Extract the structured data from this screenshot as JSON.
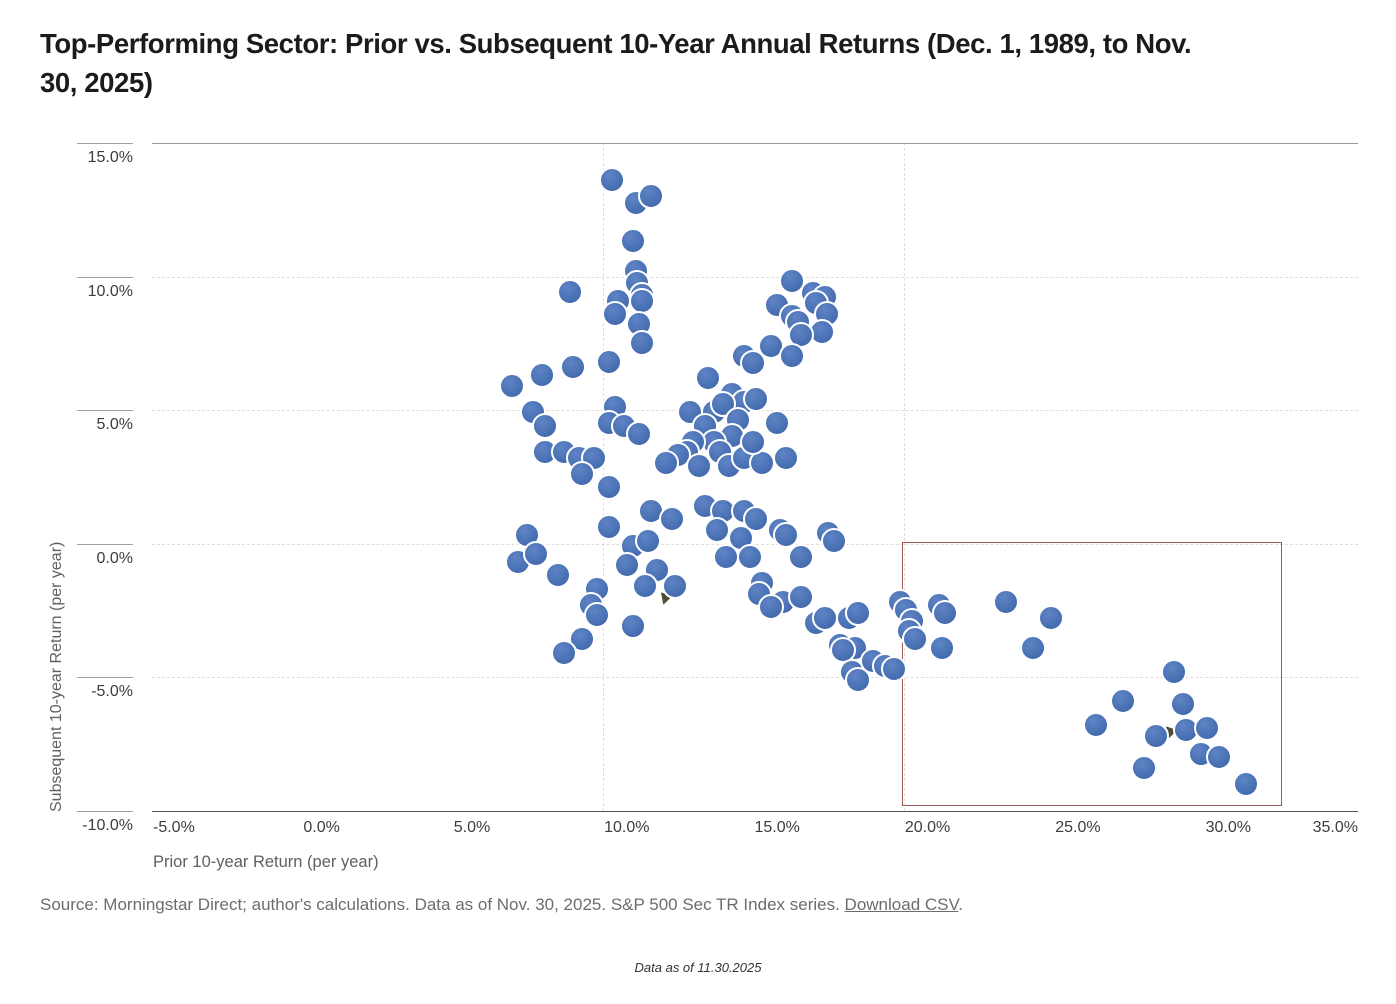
{
  "title_line1": "Top-Performing Sector: Prior vs. Subsequent 10-Year Annual Returns (Dec. 1, 1989, to Nov.",
  "title_line2": "30, 2025)",
  "source_prefix": "Source: Morningstar Direct; author's calculations. Data as of Nov. 30, 2025. S&P 500 Sec TR Index series. ",
  "source_link": "Download CSV",
  "source_suffix": ".",
  "footer_note": "Data as of 11.30.2025",
  "chart_data": {
    "type": "scatter",
    "title": "Top-Performing Sector: Prior vs. Subsequent 10-Year Annual Returns (Dec. 1, 1989, to Nov. 30, 2025)",
    "xlabel": "Prior 10-year Return (per year)",
    "ylabel": "Subsequent 10-year Return (per year)",
    "xlim": [
      -5,
      35.1
    ],
    "ylim": [
      -10,
      15
    ],
    "x_ticks": [
      {
        "value": -5,
        "label": "-5.0%"
      },
      {
        "value": 0,
        "label": "0.0%"
      },
      {
        "value": 5,
        "label": "5.0%"
      },
      {
        "value": 10,
        "label": "10.0%"
      },
      {
        "value": 15,
        "label": "15.0%"
      },
      {
        "value": 20,
        "label": "20.0%"
      },
      {
        "value": 25,
        "label": "25.0%"
      },
      {
        "value": 30,
        "label": "30.0%"
      },
      {
        "value": 35,
        "label": "35.0%"
      }
    ],
    "y_ticks": [
      {
        "value": 15,
        "label": "15.0%"
      },
      {
        "value": 10,
        "label": "10.0%"
      },
      {
        "value": 5,
        "label": "5.0%"
      },
      {
        "value": 0,
        "label": "0.0%"
      },
      {
        "value": -5,
        "label": "-5.0%"
      },
      {
        "value": -10,
        "label": "-10.0%"
      }
    ],
    "grid_x_values": [
      10,
      20
    ],
    "grid_y_values": [
      10,
      5,
      0,
      -5
    ],
    "point_color": "#4a72b4",
    "highlight_box": {
      "x1": 19.95,
      "y1": 0.05,
      "x2": 32.5,
      "y2": -9.75,
      "color": "#a05a5a"
    },
    "triangle_markers": [
      [
        28.85,
        -7.1
      ],
      [
        12.05,
        -2.1
      ],
      [
        15.15,
        6.95
      ]
    ],
    "points": [
      [
        10.3,
        13.6
      ],
      [
        11.1,
        12.75
      ],
      [
        11.6,
        13.0
      ],
      [
        11.0,
        11.3
      ],
      [
        11.1,
        10.2
      ],
      [
        11.15,
        9.75
      ],
      [
        11.3,
        9.3
      ],
      [
        10.5,
        9.05
      ],
      [
        11.3,
        9.05
      ],
      [
        10.4,
        8.6
      ],
      [
        11.2,
        8.2
      ],
      [
        11.3,
        7.5
      ],
      [
        8.9,
        9.4
      ],
      [
        16.3,
        9.8
      ],
      [
        17.0,
        9.35
      ],
      [
        17.4,
        9.2
      ],
      [
        15.8,
        8.9
      ],
      [
        16.3,
        8.5
      ],
      [
        16.5,
        8.3
      ],
      [
        17.1,
        9.0
      ],
      [
        17.45,
        8.6
      ],
      [
        17.3,
        7.9
      ],
      [
        16.6,
        7.8
      ],
      [
        15.6,
        7.4
      ],
      [
        16.3,
        7.0
      ],
      [
        14.7,
        7.0
      ],
      [
        15.0,
        6.75
      ],
      [
        9.0,
        6.6
      ],
      [
        8.0,
        6.3
      ],
      [
        7.0,
        5.9
      ],
      [
        10.2,
        6.8
      ],
      [
        7.7,
        4.9
      ],
      [
        8.1,
        4.4
      ],
      [
        13.5,
        6.2
      ],
      [
        14.3,
        5.6
      ],
      [
        14.7,
        5.3
      ],
      [
        15.1,
        5.4
      ],
      [
        10.4,
        5.1
      ],
      [
        10.2,
        4.5
      ],
      [
        10.7,
        4.4
      ],
      [
        11.2,
        4.1
      ],
      [
        12.9,
        4.9
      ],
      [
        13.7,
        4.9
      ],
      [
        14.0,
        5.2
      ],
      [
        13.4,
        4.4
      ],
      [
        14.5,
        4.6
      ],
      [
        14.3,
        4.0
      ],
      [
        13.7,
        3.8
      ],
      [
        13.0,
        3.8
      ],
      [
        12.8,
        3.4
      ],
      [
        13.9,
        3.4
      ],
      [
        12.5,
        3.3
      ],
      [
        13.2,
        2.9
      ],
      [
        14.2,
        2.9
      ],
      [
        14.7,
        3.2
      ],
      [
        15.3,
        3.0
      ],
      [
        15.8,
        4.5
      ],
      [
        16.1,
        3.2
      ],
      [
        12.1,
        3.0
      ],
      [
        15.0,
        3.8
      ],
      [
        8.1,
        3.4
      ],
      [
        8.7,
        3.4
      ],
      [
        9.2,
        3.2
      ],
      [
        9.7,
        3.2
      ],
      [
        9.3,
        2.6
      ],
      [
        10.2,
        2.1
      ],
      [
        11.6,
        1.2
      ],
      [
        12.3,
        0.9
      ],
      [
        13.4,
        1.4
      ],
      [
        14.0,
        1.2
      ],
      [
        14.7,
        1.2
      ],
      [
        15.1,
        0.9
      ],
      [
        13.8,
        0.5
      ],
      [
        14.6,
        0.2
      ],
      [
        15.9,
        0.5
      ],
      [
        16.1,
        0.3
      ],
      [
        17.5,
        0.4
      ],
      [
        17.7,
        0.1
      ],
      [
        10.2,
        0.6
      ],
      [
        11.0,
        -0.1
      ],
      [
        11.5,
        0.1
      ],
      [
        7.5,
        0.3
      ],
      [
        7.2,
        -0.7
      ],
      [
        7.8,
        -0.4
      ],
      [
        8.5,
        -1.2
      ],
      [
        10.8,
        -0.8
      ],
      [
        11.8,
        -1.0
      ],
      [
        11.4,
        -1.6
      ],
      [
        12.4,
        -1.6
      ],
      [
        14.1,
        -0.5
      ],
      [
        14.9,
        -0.5
      ],
      [
        16.6,
        -0.5
      ],
      [
        15.3,
        -1.5
      ],
      [
        15.2,
        -1.9
      ],
      [
        16.0,
        -2.2
      ],
      [
        16.6,
        -2.0
      ],
      [
        15.6,
        -2.4
      ],
      [
        9.8,
        -1.7
      ],
      [
        9.6,
        -2.3
      ],
      [
        9.8,
        -2.7
      ],
      [
        11.0,
        -3.1
      ],
      [
        9.3,
        -3.6
      ],
      [
        8.7,
        -4.1
      ],
      [
        17.1,
        -3.0
      ],
      [
        17.4,
        -2.8
      ],
      [
        18.2,
        -2.8
      ],
      [
        18.5,
        -2.6
      ],
      [
        17.9,
        -3.8
      ],
      [
        18.4,
        -3.9
      ],
      [
        18.0,
        -4.0
      ],
      [
        18.3,
        -4.8
      ],
      [
        18.5,
        -5.1
      ],
      [
        19.0,
        -4.4
      ],
      [
        19.4,
        -4.6
      ],
      [
        19.7,
        -4.7
      ],
      [
        19.9,
        -2.2
      ],
      [
        20.1,
        -2.5
      ],
      [
        20.3,
        -2.9
      ],
      [
        20.2,
        -3.3
      ],
      [
        20.4,
        -3.6
      ],
      [
        21.2,
        -2.3
      ],
      [
        21.4,
        -2.6
      ],
      [
        21.3,
        -3.9
      ],
      [
        23.4,
        -2.2
      ],
      [
        24.9,
        -2.8
      ],
      [
        24.3,
        -3.9
      ],
      [
        29.0,
        -4.8
      ],
      [
        27.3,
        -5.9
      ],
      [
        29.3,
        -6.0
      ],
      [
        26.4,
        -6.8
      ],
      [
        28.4,
        -7.2
      ],
      [
        29.4,
        -7.0
      ],
      [
        30.1,
        -6.9
      ],
      [
        29.9,
        -7.9
      ],
      [
        30.5,
        -8.0
      ],
      [
        28.0,
        -8.4
      ],
      [
        31.4,
        -9.0
      ]
    ]
  }
}
